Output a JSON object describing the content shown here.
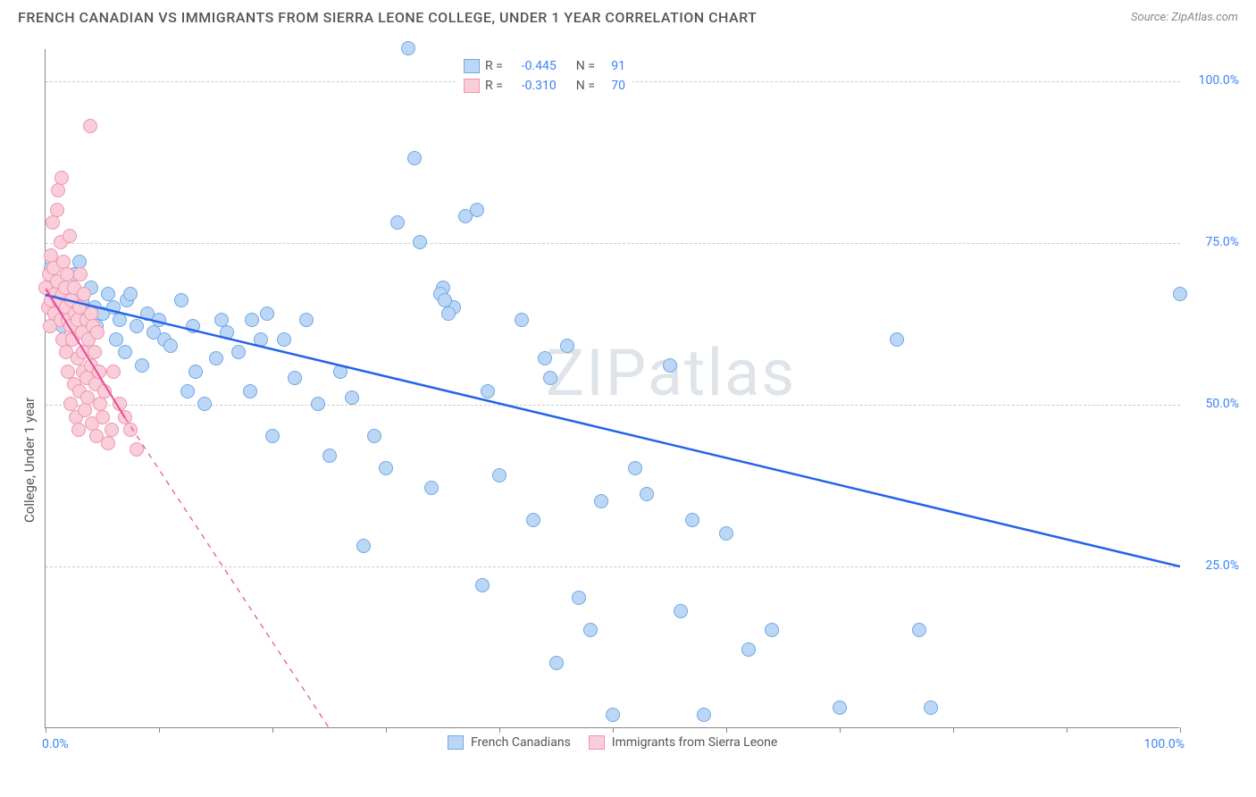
{
  "title": "FRENCH CANADIAN VS IMMIGRANTS FROM SIERRA LEONE COLLEGE, UNDER 1 YEAR CORRELATION CHART",
  "source": "Source: ZipAtlas.com",
  "watermark": "ZIPatlas",
  "ylabel": "College, Under 1 year",
  "y_ticks": [
    {
      "value": 25,
      "label": "25.0%"
    },
    {
      "value": 50,
      "label": "50.0%"
    },
    {
      "value": 75,
      "label": "75.0%"
    },
    {
      "value": 100,
      "label": "100.0%"
    }
  ],
  "x_ticks": [
    0,
    10,
    20,
    30,
    40,
    50,
    60,
    70,
    80,
    90,
    100
  ],
  "x_labels": [
    {
      "value": 0,
      "label": "0.0%"
    },
    {
      "value": 100,
      "label": "100.0%"
    }
  ],
  "xlim": [
    0,
    100
  ],
  "ylim": [
    0,
    105
  ],
  "series": [
    {
      "name": "French Canadians",
      "point_fill": "#bcd7f5",
      "point_stroke": "#6ea8e8",
      "marker_size": 16,
      "trend_color": "#2563eb",
      "trend_width": 2.5,
      "trend_solid_from": [
        0,
        67
      ],
      "trend_solid_to": [
        100,
        25
      ],
      "R": "-0.445",
      "N": "91",
      "legend_swatch_fill": "#bcd7f5",
      "legend_swatch_stroke": "#6ea8e8",
      "points_x": [
        0.5,
        1,
        1.2,
        1.5,
        2,
        2.5,
        2.7,
        3,
        3.2,
        3.5,
        4,
        4.3,
        4.5,
        5,
        5.5,
        6,
        6.2,
        6.5,
        7,
        7.2,
        7.5,
        8,
        8.5,
        9,
        9.5,
        10,
        10.5,
        11,
        12,
        12.5,
        13,
        13.2,
        14,
        15,
        15.5,
        16,
        17,
        18,
        18.2,
        19,
        19.5,
        20,
        21,
        22,
        23,
        24,
        25,
        26,
        27,
        28,
        29,
        30,
        31,
        32,
        32.5,
        33,
        34,
        35,
        36,
        37,
        38,
        38.5,
        39,
        40,
        42,
        43,
        44,
        44.5,
        45,
        46,
        47,
        48,
        49,
        50,
        52,
        53,
        55,
        56,
        57,
        58,
        60,
        62,
        64,
        70,
        75,
        77,
        78,
        100,
        34.8,
        35.2,
        35.5
      ],
      "points_y": [
        71,
        65,
        68,
        62,
        67,
        70,
        63,
        72,
        66,
        64,
        68,
        65,
        62,
        64,
        67,
        65,
        60,
        63,
        58,
        66,
        67,
        62,
        56,
        64,
        61,
        63,
        60,
        59,
        66,
        52,
        62,
        55,
        50,
        57,
        63,
        61,
        58,
        52,
        63,
        60,
        64,
        45,
        60,
        54,
        63,
        50,
        42,
        55,
        51,
        28,
        45,
        40,
        78,
        105,
        88,
        75,
        37,
        68,
        65,
        79,
        80,
        22,
        52,
        39,
        63,
        32,
        57,
        54,
        10,
        59,
        20,
        15,
        35,
        2,
        40,
        36,
        56,
        18,
        32,
        2,
        30,
        12,
        15,
        3,
        60,
        15,
        3,
        67,
        67,
        66,
        64
      ]
    },
    {
      "name": "Immigrants from Sierra Leone",
      "point_fill": "#f9cdd9",
      "point_stroke": "#f095ad",
      "marker_size": 16,
      "trend_color": "#ec4899",
      "trend_width": 2,
      "trend_solid_from": [
        0,
        68
      ],
      "trend_solid_to": [
        7,
        48
      ],
      "trend_dashed_to": [
        25,
        0
      ],
      "R": "-0.310",
      "N": "70",
      "legend_swatch_fill": "#f9cdd9",
      "legend_swatch_stroke": "#f095ad",
      "points_x": [
        0,
        0.2,
        0.3,
        0.4,
        0.5,
        0.5,
        0.6,
        0.7,
        0.8,
        0.9,
        1,
        1,
        1.1,
        1.2,
        1.3,
        1.3,
        1.4,
        1.5,
        1.5,
        1.6,
        1.7,
        1.8,
        1.8,
        1.9,
        2,
        2,
        2.1,
        2.2,
        2.2,
        2.3,
        2.4,
        2.5,
        2.5,
        2.6,
        2.7,
        2.8,
        2.8,
        2.9,
        3,
        3,
        3.1,
        3.2,
        3.3,
        3.3,
        3.4,
        3.5,
        3.6,
        3.6,
        3.7,
        3.8,
        3.9,
        4,
        4,
        4.1,
        4.2,
        4.3,
        4.4,
        4.5,
        4.6,
        4.7,
        4.8,
        5,
        5.2,
        5.5,
        5.8,
        6,
        6.5,
        7,
        7.5,
        8
      ],
      "points_y": [
        68,
        65,
        70,
        62,
        73,
        66,
        78,
        71,
        64,
        67,
        80,
        69,
        83,
        66,
        75,
        63,
        85,
        67,
        60,
        72,
        68,
        65,
        58,
        70,
        55,
        63,
        76,
        62,
        50,
        66,
        60,
        53,
        68,
        64,
        48,
        57,
        63,
        46,
        65,
        52,
        70,
        61,
        58,
        55,
        67,
        49,
        63,
        54,
        51,
        60,
        93,
        64,
        56,
        47,
        62,
        58,
        53,
        45,
        61,
        55,
        50,
        48,
        52,
        44,
        46,
        55,
        50,
        48,
        46,
        43
      ]
    }
  ],
  "legend_top_headers": [
    "R =",
    "N ="
  ],
  "legend_bottom_labels": [
    "French Canadians",
    "Immigrants from Sierra Leone"
  ],
  "colors": {
    "axis_text": "#3b82f6",
    "grid": "#cccccc",
    "body_text": "#555555"
  }
}
